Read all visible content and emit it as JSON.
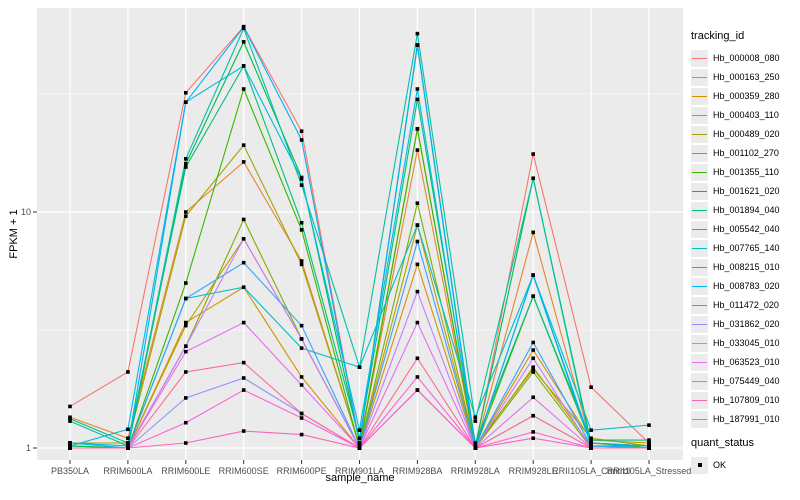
{
  "colors": {
    "panel_bg": "#ebebeb",
    "grid_major": "#ffffff",
    "grid_minor": "#f5f5f5",
    "tick_mark": "#333333",
    "tick_label": "#4d4d4d",
    "point": "#000000"
  },
  "axes": {
    "x_title": "sample_name",
    "y_title": "FPKM + 1",
    "y_tick_labels": [
      "1",
      "10"
    ],
    "y_tick_values": [
      1,
      10
    ],
    "y_minor_values": [
      3.1623,
      31.623
    ]
  },
  "legend": {
    "tracking_title": "tracking_id",
    "quant_title": "quant_status",
    "quant_items": [
      {
        "label": "OK"
      }
    ]
  },
  "chart_data": {
    "type": "line",
    "title": "",
    "xlabel": "sample_name",
    "ylabel": "FPKM + 1",
    "y_scale": "log10",
    "ylim": [
      0.89,
      73
    ],
    "grid": true,
    "legend_position": "right",
    "point_shape": "filled-square",
    "categories": [
      "PB350LA",
      "RRIM600LA",
      "RRIM600LE",
      "RRIM600SE",
      "RRIM600PE",
      "RRIM901LA",
      "RRIM928BA",
      "RRIM928LA",
      "RRIM928LE",
      "RRII105LA_Control",
      "RRII105LA_Stressed"
    ],
    "series": [
      {
        "name": "Hb_000008_080",
        "color": "#F8766D",
        "values": [
          1.5,
          2.1,
          32.0,
          61.0,
          22.0,
          1.05,
          51.0,
          1.0,
          17.6,
          1.81,
          1.05
        ]
      },
      {
        "name": "Hb_000163_250",
        "color": "#EA8331",
        "values": [
          1.35,
          1.1,
          10.0,
          16.3,
          6.2,
          1.02,
          18.3,
          1.0,
          8.2,
          1.05,
          1.02
        ]
      },
      {
        "name": "Hb_000359_280",
        "color": "#D89000",
        "values": [
          1.02,
          1.0,
          3.4,
          4.8,
          2.0,
          1.0,
          6.0,
          1.0,
          2.6,
          1.08,
          1.05
        ]
      },
      {
        "name": "Hb_000403_110",
        "color": "#C09B00",
        "values": [
          1.0,
          1.0,
          3.3,
          7.7,
          2.9,
          1.0,
          8.8,
          1.0,
          2.2,
          1.02,
          1.0
        ]
      },
      {
        "name": "Hb_000489_020",
        "color": "#A3A500",
        "values": [
          1.05,
          1.05,
          9.6,
          19.2,
          6.0,
          1.02,
          22.5,
          1.02,
          2.16,
          1.1,
          1.02
        ]
      },
      {
        "name": "Hb_001102_270",
        "color": "#7CAE00",
        "values": [
          1.0,
          1.0,
          2.7,
          9.3,
          2.9,
          1.0,
          10.9,
          1.0,
          2.1,
          1.0,
          1.0
        ]
      },
      {
        "name": "Hb_001355_110",
        "color": "#39B600",
        "values": [
          1.0,
          1.0,
          5.0,
          33.2,
          8.4,
          1.0,
          22.5,
          1.0,
          4.4,
          1.05,
          1.0
        ]
      },
      {
        "name": "Hb_001621_020",
        "color": "#00BB4E",
        "values": [
          1.02,
          1.0,
          16.0,
          52.6,
          14.0,
          1.05,
          51.0,
          1.02,
          13.9,
          1.05,
          1.02
        ]
      },
      {
        "name": "Hb_001894_040",
        "color": "#00BF7D",
        "values": [
          1.33,
          1.05,
          15.5,
          41.6,
          9.0,
          1.1,
          30.0,
          1.05,
          4.4,
          1.08,
          1.08
        ]
      },
      {
        "name": "Hb_005542_040",
        "color": "#00C1A3",
        "values": [
          1.3,
          1.02,
          16.8,
          60.0,
          13.0,
          2.2,
          57.0,
          1.3,
          13.9,
          1.02,
          1.02
        ]
      },
      {
        "name": "Hb_007765_140",
        "color": "#00BFC4",
        "values": [
          1.05,
          1.0,
          4.3,
          4.8,
          2.65,
          2.2,
          8.8,
          1.35,
          5.4,
          1.19,
          1.25
        ]
      },
      {
        "name": "Hb_008215_010",
        "color": "#00BAE0",
        "values": [
          1.02,
          1.2,
          29.2,
          41.6,
          13.8,
          1.19,
          33.2,
          1.0,
          5.4,
          1.02,
          1.0
        ]
      },
      {
        "name": "Hb_008783_020",
        "color": "#00B0F6",
        "values": [
          1.05,
          1.02,
          29.2,
          60.8,
          20.2,
          1.05,
          51.0,
          1.0,
          5.4,
          1.05,
          1.02
        ]
      },
      {
        "name": "Hb_011472_020",
        "color": "#35A2FF",
        "values": [
          1.0,
          1.0,
          4.3,
          6.1,
          3.3,
          1.0,
          7.5,
          1.0,
          2.8,
          1.02,
          1.0
        ]
      },
      {
        "name": "Hb_031862_020",
        "color": "#9590FF",
        "values": [
          1.0,
          1.0,
          1.63,
          1.98,
          1.4,
          1.0,
          1.76,
          1.0,
          1.37,
          1.0,
          1.0
        ]
      },
      {
        "name": "Hb_033045_010",
        "color": "#C77CFF",
        "values": [
          1.0,
          1.0,
          2.7,
          7.7,
          2.9,
          1.0,
          4.6,
          1.0,
          2.4,
          1.0,
          1.0
        ]
      },
      {
        "name": "Hb_063523_010",
        "color": "#E76BF3",
        "values": [
          1.0,
          1.0,
          2.56,
          3.4,
          1.85,
          1.0,
          3.4,
          1.0,
          1.64,
          1.0,
          1.0
        ]
      },
      {
        "name": "Hb_075449_040",
        "color": "#FA62DB",
        "values": [
          1.0,
          1.0,
          1.28,
          1.76,
          1.34,
          1.0,
          2.0,
          1.0,
          1.17,
          1.0,
          1.0
        ]
      },
      {
        "name": "Hb_107809_010",
        "color": "#FF62BC",
        "values": [
          1.0,
          1.0,
          1.05,
          1.18,
          1.14,
          1.0,
          1.76,
          1.0,
          1.1,
          1.0,
          1.0
        ]
      },
      {
        "name": "Hb_187991_010",
        "color": "#FF6A98",
        "values": [
          1.0,
          1.0,
          2.1,
          2.3,
          1.4,
          1.0,
          2.4,
          1.0,
          1.37,
          1.0,
          1.0
        ]
      }
    ]
  }
}
